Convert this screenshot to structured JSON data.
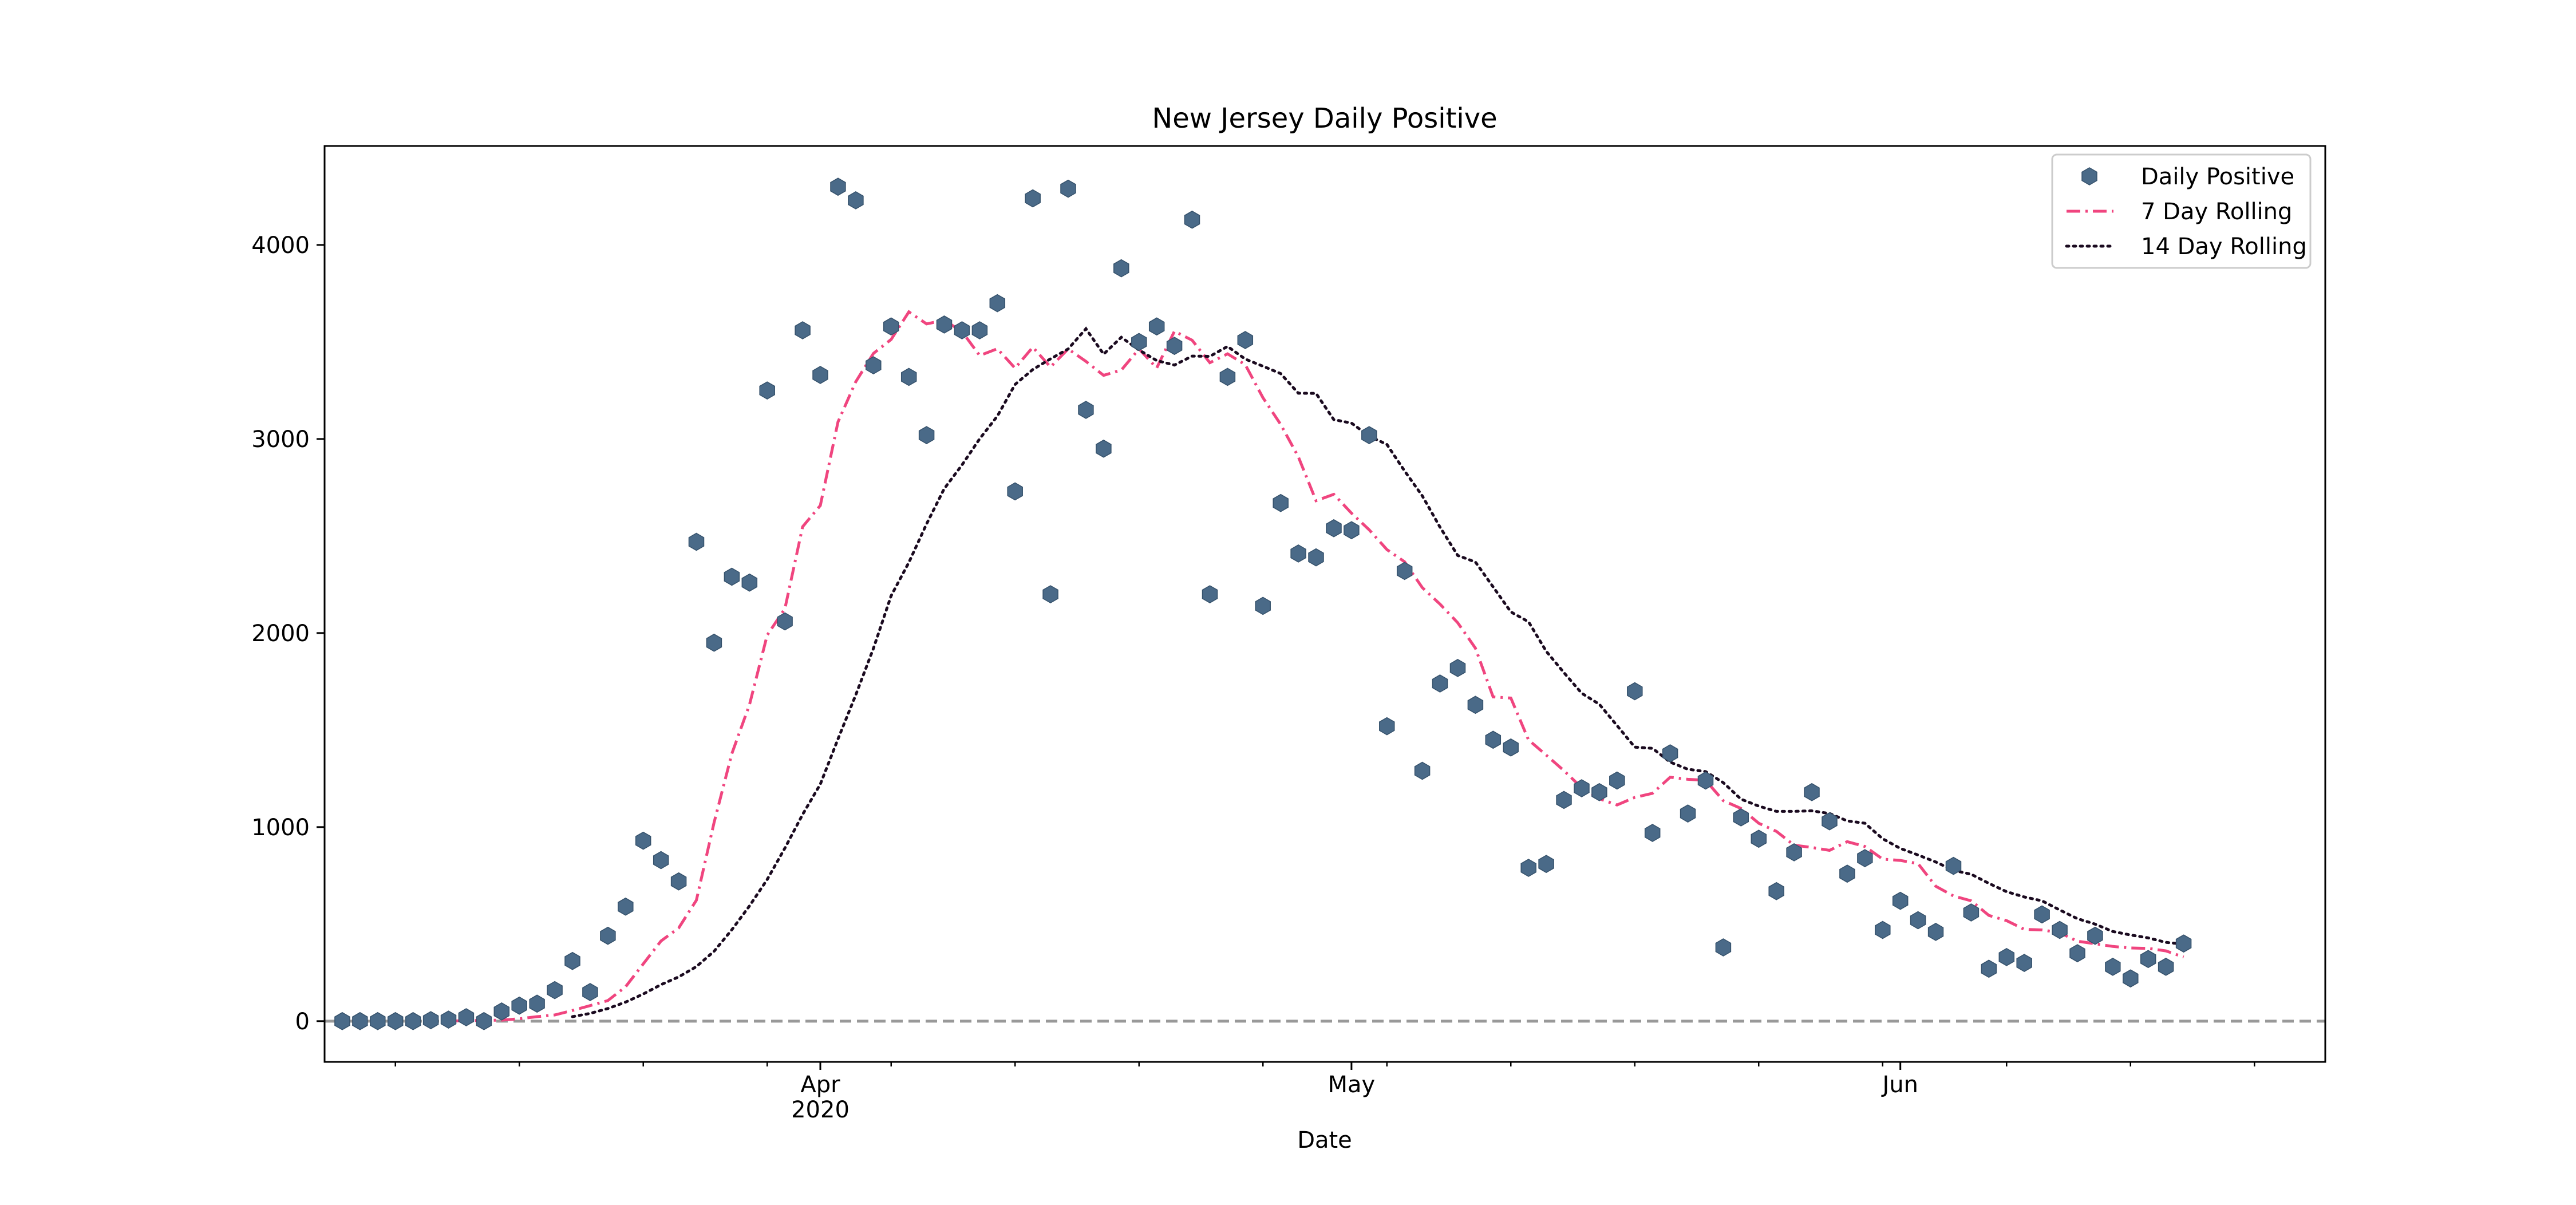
{
  "chart_data": {
    "type": "line",
    "title": "New Jersey Daily Positive",
    "xlabel": "Date",
    "ylabel": "",
    "x_range": [
      "2020-03-04",
      "2020-06-25"
    ],
    "ylim": [
      -210,
      4510
    ],
    "y_ticks": [
      0,
      1000,
      2000,
      3000,
      4000
    ],
    "x_major_ticks": [
      {
        "date": "2020-04-01",
        "label": "Apr",
        "sublabel": "2020"
      },
      {
        "date": "2020-05-01",
        "label": "May",
        "sublabel": ""
      },
      {
        "date": "2020-06-01",
        "label": "Jun",
        "sublabel": ""
      }
    ],
    "x_minor_ticks": [
      "2020-03-08",
      "2020-03-15",
      "2020-03-22",
      "2020-03-29",
      "2020-04-05",
      "2020-04-12",
      "2020-04-19",
      "2020-04-26",
      "2020-05-03",
      "2020-05-10",
      "2020-05-17",
      "2020-05-24",
      "2020-05-31",
      "2020-06-07",
      "2020-06-14",
      "2020-06-21"
    ],
    "grid": false,
    "legend_position": "top-right",
    "reference_line": {
      "y": 0,
      "style": "dashed",
      "color": "#999999"
    },
    "start_date": "2020-03-05",
    "series": [
      {
        "name": "Daily Positive",
        "kind": "scatter",
        "marker": "hexagon",
        "color": "#4a6a88",
        "values": [
          0,
          0,
          0,
          0,
          0,
          5,
          8,
          20,
          0,
          50,
          80,
          90,
          160,
          310,
          150,
          440,
          590,
          930,
          830,
          720,
          2470,
          1950,
          2290,
          2260,
          3250,
          2060,
          3560,
          3330,
          4300,
          4230,
          3380,
          3580,
          3320,
          3020,
          3590,
          3560,
          3560,
          3700,
          2730,
          4240,
          2200,
          4290,
          3150,
          2950,
          3880,
          3500,
          3580,
          3480,
          4130,
          2200,
          3320,
          3510,
          2140,
          2670,
          2410,
          2390,
          2540,
          2530,
          3020,
          1520,
          2320,
          1290,
          1740,
          1820,
          1630,
          1450,
          1410,
          790,
          810,
          1140,
          1200,
          1180,
          1240,
          1700,
          970,
          1380,
          1070,
          1240,
          380,
          1050,
          940,
          670,
          870,
          1180,
          1030,
          760,
          840,
          470,
          620,
          520,
          460,
          800,
          560,
          270,
          330,
          300,
          550,
          470,
          350,
          440,
          280,
          220,
          320,
          280,
          400
        ]
      },
      {
        "name": "7 Day Rolling",
        "kind": "line",
        "style": "dashdot",
        "color": "#f0457f",
        "values": [
          null,
          null,
          null,
          null,
          null,
          null,
          1,
          2,
          4,
          5,
          12,
          23,
          32,
          55,
          80,
          106,
          177,
          295,
          413,
          480,
          623,
          1023,
          1378,
          1631,
          1989,
          2126,
          2548,
          2657,
          3088,
          3295,
          3441,
          3513,
          3655,
          3593,
          3612,
          3554,
          3430,
          3465,
          3365,
          3473,
          3371,
          3464,
          3400,
          3328,
          3355,
          3464,
          3366,
          3555,
          3509,
          3393,
          3439,
          3383,
          3213,
          3075,
          2908,
          2682,
          2715,
          2618,
          2532,
          2430,
          2367,
          2234,
          2149,
          2053,
          1922,
          1671,
          1665,
          1449,
          1371,
          1291,
          1203,
          1146,
          1114,
          1153,
          1174,
          1257,
          1246,
          1241,
          1136,
          1096,
          1020,
          978,
          907,
          895,
          880,
          925,
          900,
          835,
          828,
          812,
          695,
          645,
          620,
          545,
          518,
          473,
          470,
          456,
          412,
          399,
          385,
          377,
          375,
          362,
          330
        ]
      },
      {
        "name": "14 Day Rolling",
        "kind": "line",
        "style": "dotted",
        "color": "#1a0a1f",
        "values": [
          null,
          null,
          null,
          null,
          null,
          null,
          null,
          null,
          null,
          null,
          null,
          null,
          null,
          23,
          40,
          65,
          98,
          140,
          188,
          228,
          281,
          360,
          471,
          594,
          730,
          892,
          1065,
          1221,
          1454,
          1681,
          1921,
          2192,
          2364,
          2562,
          2744,
          2866,
          3001,
          3118,
          3281,
          3358,
          3413,
          3464,
          3568,
          3437,
          3524,
          3459,
          3404,
          3381,
          3427,
          3426,
          3477,
          3412,
          3375,
          3337,
          3236,
          3235,
          3100,
          3082,
          3015,
          2972,
          2835,
          2707,
          2546,
          2400,
          2366,
          2238,
          2109,
          2058,
          1906,
          1796,
          1690,
          1633,
          1523,
          1412,
          1406,
          1335,
          1298,
          1286,
          1229,
          1144,
          1108,
          1081,
          1081,
          1084,
          1070,
          1032,
          1020,
          940,
          890,
          856,
          820,
          777,
          757,
          710,
          667,
          640,
          620,
          573,
          528,
          500,
          462,
          444,
          429,
          406,
          397
        ]
      }
    ]
  }
}
